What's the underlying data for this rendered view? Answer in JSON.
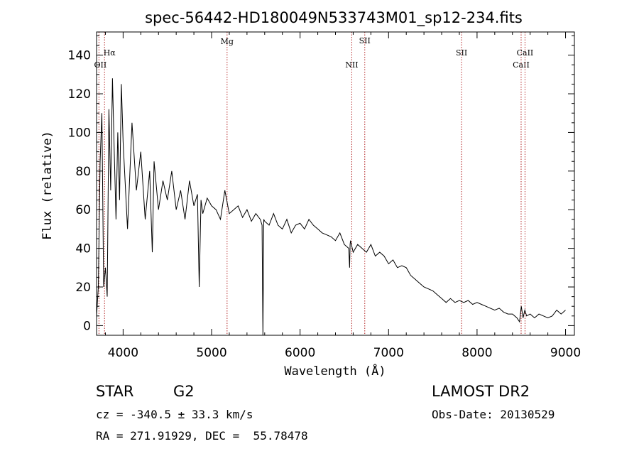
{
  "chart_data": {
    "type": "line",
    "title": "spec-56442-HD180049N533743M01_sp12-234.fits",
    "xlabel": "Wavelength (Å)",
    "ylabel": "Flux (relative)",
    "xlim": [
      3700,
      9100
    ],
    "ylim": [
      -5,
      152
    ],
    "xticks": [
      4000,
      5000,
      6000,
      7000,
      8000,
      9000
    ],
    "yticks": [
      0,
      20,
      40,
      60,
      80,
      100,
      120,
      140
    ],
    "line_color": "#000000",
    "marker_color": "#b22222",
    "lines": [
      {
        "name": "Hα",
        "x": 3790
      },
      {
        "name": "OII",
        "x": 3727
      },
      {
        "name": "Mg",
        "x": 5175
      },
      {
        "name": "NII",
        "x": 6584
      },
      {
        "name": "SII",
        "x": 6731
      },
      {
        "name": "SII",
        "x": 7825
      },
      {
        "name": "CaII",
        "x": 8498
      },
      {
        "name": "CaII",
        "x": 8542
      }
    ],
    "series": [
      {
        "name": "flux",
        "x": [
          3700,
          3720,
          3740,
          3760,
          3780,
          3800,
          3820,
          3840,
          3860,
          3880,
          3900,
          3920,
          3940,
          3960,
          3980,
          4000,
          4050,
          4100,
          4150,
          4200,
          4250,
          4300,
          4330,
          4350,
          4400,
          4450,
          4500,
          4550,
          4600,
          4650,
          4700,
          4750,
          4800,
          4840,
          4860,
          4880,
          4900,
          4950,
          5000,
          5050,
          5100,
          5150,
          5200,
          5250,
          5300,
          5350,
          5400,
          5450,
          5500,
          5550,
          5570,
          5580,
          5590,
          5600,
          5650,
          5700,
          5750,
          5800,
          5850,
          5900,
          5950,
          6000,
          6050,
          6100,
          6150,
          6200,
          6250,
          6300,
          6350,
          6400,
          6450,
          6500,
          6550,
          6560,
          6565,
          6570,
          6600,
          6650,
          6700,
          6750,
          6800,
          6850,
          6900,
          6950,
          7000,
          7050,
          7100,
          7150,
          7200,
          7250,
          7300,
          7350,
          7400,
          7450,
          7500,
          7550,
          7600,
          7650,
          7700,
          7750,
          7800,
          7850,
          7900,
          7950,
          8000,
          8050,
          8100,
          8150,
          8200,
          8250,
          8300,
          8350,
          8400,
          8450,
          8480,
          8500,
          8520,
          8540,
          8560,
          8600,
          8650,
          8700,
          8750,
          8800,
          8850,
          8900,
          8950,
          9000
        ],
        "values": [
          5,
          20,
          85,
          110,
          20,
          30,
          15,
          112,
          70,
          128,
          90,
          55,
          100,
          65,
          125,
          95,
          50,
          105,
          70,
          90,
          55,
          80,
          38,
          85,
          60,
          75,
          65,
          80,
          60,
          70,
          55,
          75,
          62,
          68,
          20,
          65,
          58,
          66,
          62,
          60,
          55,
          70,
          58,
          60,
          62,
          56,
          60,
          54,
          58,
          55,
          52,
          -5,
          55,
          54,
          52,
          58,
          52,
          50,
          55,
          48,
          52,
          53,
          50,
          55,
          52,
          50,
          48,
          47,
          46,
          44,
          48,
          42,
          40,
          30,
          42,
          44,
          38,
          42,
          40,
          38,
          42,
          36,
          38,
          36,
          32,
          34,
          30,
          31,
          30,
          26,
          24,
          22,
          20,
          19,
          18,
          16,
          14,
          12,
          14,
          12,
          13,
          12,
          13,
          11,
          12,
          11,
          10,
          9,
          8,
          9,
          7,
          6,
          6,
          4,
          2,
          10,
          4,
          8,
          5,
          6,
          4,
          6,
          5,
          4,
          5,
          8,
          6,
          8
        ]
      }
    ]
  },
  "info": {
    "obj_class": "STAR",
    "subclass": "G2",
    "survey": "LAMOST DR2",
    "cz": "cz = -340.5 ± 33.3 km/s",
    "obs_date": "Obs-Date: 20130529",
    "coords": "RA = 271.91929, DEC =  55.78478"
  }
}
